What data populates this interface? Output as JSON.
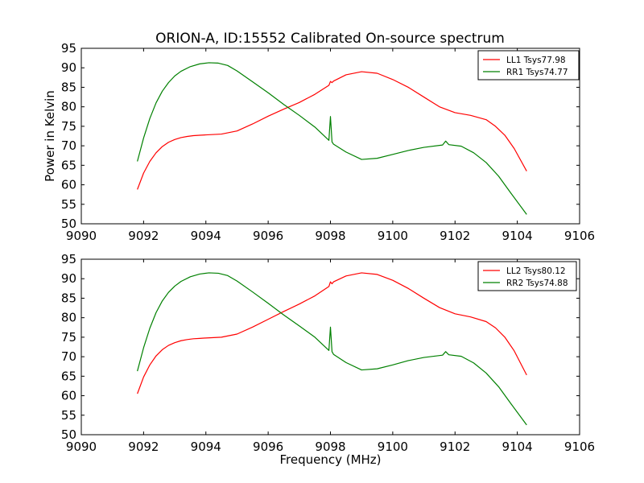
{
  "figure": {
    "title": "ORION-A, ID:15552 Calibrated On-source spectrum",
    "background": "#ffffff"
  },
  "chart_data": [
    {
      "type": "line",
      "title": "ORION-A, ID:15552 Calibrated On-source spectrum",
      "xlabel": "",
      "ylabel": "Power in Kelvin",
      "xlim": [
        9090,
        9106
      ],
      "ylim": [
        50,
        95
      ],
      "xticks": [
        9090,
        9092,
        9094,
        9096,
        9098,
        9100,
        9102,
        9104,
        9106
      ],
      "yticks": [
        50,
        55,
        60,
        65,
        70,
        75,
        80,
        85,
        90,
        95
      ],
      "grid": false,
      "legend": "top-right",
      "series": [
        {
          "name": "LL1 Tsys77.98",
          "color": "#ff0000",
          "x": [
            9091.8,
            9092.0,
            9092.2,
            9092.4,
            9092.6,
            9092.8,
            9093.0,
            9093.2,
            9093.4,
            9093.6,
            9093.8,
            9094.0,
            9094.5,
            9095.0,
            9095.5,
            9096.0,
            9096.5,
            9097.0,
            9097.5,
            9097.95,
            9098.0,
            9098.05,
            9098.1,
            9098.5,
            9099.0,
            9099.5,
            9100.0,
            9100.5,
            9101.0,
            9101.5,
            9102.0,
            9102.5,
            9103.0,
            9103.3,
            9103.6,
            9103.9,
            9104.3
          ],
          "y": [
            58.8,
            63.0,
            66.0,
            68.2,
            69.8,
            70.9,
            71.6,
            72.1,
            72.4,
            72.6,
            72.7,
            72.8,
            73.0,
            73.8,
            75.6,
            77.6,
            79.4,
            81.1,
            83.2,
            85.5,
            86.5,
            86.2,
            86.6,
            88.2,
            89.0,
            88.6,
            87.0,
            85.0,
            82.5,
            80.0,
            78.5,
            77.8,
            76.7,
            75.0,
            72.7,
            69.3,
            63.5
          ]
        },
        {
          "name": "RR1 Tsys74.77",
          "color": "#008000",
          "x": [
            9091.8,
            9092.0,
            9092.2,
            9092.4,
            9092.6,
            9092.8,
            9093.0,
            9093.2,
            9093.5,
            9093.8,
            9094.1,
            9094.4,
            9094.7,
            9095.0,
            9095.5,
            9096.0,
            9096.5,
            9097.0,
            9097.5,
            9097.95,
            9098.0,
            9098.05,
            9098.1,
            9098.5,
            9099.0,
            9099.5,
            9100.0,
            9100.5,
            9101.0,
            9101.6,
            9101.7,
            9101.8,
            9102.2,
            9102.6,
            9103.0,
            9103.4,
            9103.8,
            9104.3
          ],
          "y": [
            66.0,
            72.0,
            77.0,
            81.0,
            84.0,
            86.2,
            87.9,
            89.1,
            90.3,
            91.0,
            91.3,
            91.2,
            90.6,
            89.2,
            86.4,
            83.6,
            80.6,
            77.8,
            74.8,
            71.4,
            77.5,
            71.0,
            70.4,
            68.4,
            66.5,
            66.8,
            67.8,
            68.8,
            69.6,
            70.2,
            71.2,
            70.3,
            69.9,
            68.2,
            65.7,
            62.2,
            57.8,
            52.4
          ]
        }
      ]
    },
    {
      "type": "line",
      "title": "",
      "xlabel": "Frequency (MHz)",
      "ylabel": "",
      "xlim": [
        9090,
        9106
      ],
      "ylim": [
        50,
        95
      ],
      "xticks": [
        9090,
        9092,
        9094,
        9096,
        9098,
        9100,
        9102,
        9104,
        9106
      ],
      "yticks": [
        50,
        55,
        60,
        65,
        70,
        75,
        80,
        85,
        90,
        95
      ],
      "grid": false,
      "legend": "top-right",
      "series": [
        {
          "name": "LL2 Tsys80.12",
          "color": "#ff0000",
          "x": [
            9091.8,
            9092.0,
            9092.2,
            9092.4,
            9092.6,
            9092.8,
            9093.0,
            9093.2,
            9093.4,
            9093.6,
            9093.8,
            9094.0,
            9094.5,
            9095.0,
            9095.5,
            9096.0,
            9096.5,
            9097.0,
            9097.5,
            9097.95,
            9098.0,
            9098.05,
            9098.1,
            9098.5,
            9099.0,
            9099.5,
            9100.0,
            9100.5,
            9101.0,
            9101.5,
            9102.0,
            9102.5,
            9103.0,
            9103.3,
            9103.6,
            9103.9,
            9104.3
          ],
          "y": [
            60.5,
            64.8,
            67.9,
            70.2,
            71.8,
            72.9,
            73.6,
            74.1,
            74.4,
            74.6,
            74.7,
            74.8,
            75.0,
            75.8,
            77.6,
            79.6,
            81.6,
            83.5,
            85.6,
            88.0,
            89.2,
            88.7,
            89.2,
            90.7,
            91.5,
            91.1,
            89.6,
            87.5,
            85.0,
            82.6,
            81.0,
            80.2,
            79.0,
            77.4,
            75.0,
            71.5,
            65.3
          ]
        },
        {
          "name": "RR2 Tsys74.88",
          "color": "#008000",
          "x": [
            9091.8,
            9092.0,
            9092.2,
            9092.4,
            9092.6,
            9092.8,
            9093.0,
            9093.2,
            9093.5,
            9093.8,
            9094.1,
            9094.4,
            9094.7,
            9095.0,
            9095.5,
            9096.0,
            9096.5,
            9097.0,
            9097.5,
            9097.95,
            9098.0,
            9098.05,
            9098.1,
            9098.5,
            9099.0,
            9099.5,
            9100.0,
            9100.5,
            9101.0,
            9101.6,
            9101.7,
            9101.8,
            9102.2,
            9102.6,
            9103.0,
            9103.4,
            9103.8,
            9104.3
          ],
          "y": [
            66.3,
            72.3,
            77.3,
            81.3,
            84.3,
            86.5,
            88.1,
            89.3,
            90.5,
            91.2,
            91.5,
            91.4,
            90.8,
            89.4,
            86.6,
            83.7,
            80.7,
            77.9,
            75.0,
            71.6,
            77.6,
            71.3,
            70.6,
            68.5,
            66.6,
            66.9,
            67.9,
            69.0,
            69.8,
            70.4,
            71.3,
            70.5,
            70.1,
            68.4,
            65.8,
            62.3,
            57.9,
            52.5
          ]
        }
      ]
    }
  ]
}
